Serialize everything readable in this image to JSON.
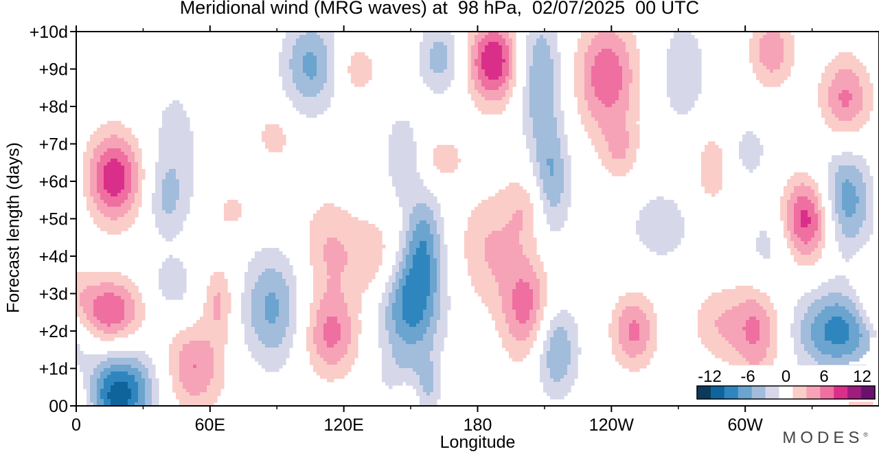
{
  "title": "Meridional wind (MRG waves) at  98 hPa,  02/07/2025  00 UTC",
  "brand": "MODES",
  "brand_mark": "®",
  "chart_data": {
    "type": "heatmap",
    "title": "Meridional wind (MRG waves) at  98 hPa,  02/07/2025  00 UTC",
    "xlabel": "Longitude",
    "ylabel": "Forecast length (days)",
    "x_ticks": [
      "0",
      "60E",
      "120E",
      "180",
      "120W",
      "60W"
    ],
    "x_tick_values": [
      0,
      60,
      120,
      180,
      240,
      300
    ],
    "x_minor_tick_values": [
      30,
      90,
      150,
      210,
      270,
      330
    ],
    "xlim": [
      0,
      360
    ],
    "y_ticks": [
      "00",
      "+1d",
      "+2d",
      "+3d",
      "+4d",
      "+5d",
      "+6d",
      "+7d",
      "+8d",
      "+9d",
      "+10d"
    ],
    "y_tick_values": [
      0,
      1,
      2,
      3,
      4,
      5,
      6,
      7,
      8,
      9,
      10
    ],
    "ylim": [
      0,
      10
    ],
    "colorbar": {
      "labels": [
        "-12",
        "-6",
        "0",
        "6",
        "12"
      ],
      "label_values": [
        -12,
        -6,
        0,
        6,
        12
      ],
      "levels": [
        -14,
        -12,
        -10,
        -8,
        -6,
        -4,
        -2,
        2,
        4,
        6,
        8,
        10,
        12,
        14
      ],
      "colors": [
        "#0b3a5c",
        "#10649c",
        "#2f86bf",
        "#6aa4cf",
        "#a2bcdc",
        "#d6d8ea",
        "#ffffff",
        "#fbcdc8",
        "#f6a3b8",
        "#ef6fa0",
        "#d92f8a",
        "#a01c7d",
        "#6a1170"
      ]
    },
    "features": [
      {
        "lon": 17,
        "day": 6.1,
        "amp": 9.5,
        "wx": 9,
        "wd": 0.85
      },
      {
        "lon": 14,
        "day": 2.5,
        "amp": 8.5,
        "wx": 11,
        "wd": 0.65
      },
      {
        "lon": 18,
        "day": 0.2,
        "amp": -9,
        "wx": 10,
        "wd": 0.7
      },
      {
        "lon": 52,
        "day": 1.0,
        "amp": 6.5,
        "wx": 10,
        "wd": 0.8
      },
      {
        "lon": 64,
        "day": 2.8,
        "amp": 4.5,
        "wx": 5,
        "wd": 0.7
      },
      {
        "lon": 44,
        "day": 6.8,
        "amp": -3,
        "wx": 9,
        "wd": 1.5
      },
      {
        "lon": 40,
        "day": 5.5,
        "amp": -3,
        "wx": 6,
        "wd": 0.7
      },
      {
        "lon": 43,
        "day": 3.2,
        "amp": -3,
        "wx": 8,
        "wd": 0.6
      },
      {
        "lon": 25,
        "day": 0.8,
        "amp": -3.5,
        "wx": 14,
        "wd": 0.8
      },
      {
        "lon": 88,
        "day": 2.6,
        "amp": -6.5,
        "wx": 10,
        "wd": 1.1
      },
      {
        "lon": 89,
        "day": 7.2,
        "amp": 3,
        "wx": 6,
        "wd": 0.5
      },
      {
        "lon": 70,
        "day": 5.2,
        "amp": 3,
        "wx": 5,
        "wd": 0.35
      },
      {
        "lon": 105,
        "day": 9.1,
        "amp": -6.5,
        "wx": 9,
        "wd": 0.9
      },
      {
        "lon": 126,
        "day": 9.0,
        "amp": 3.5,
        "wx": 7,
        "wd": 0.5
      },
      {
        "lon": 113,
        "day": 4.2,
        "amp": 4,
        "wx": 9,
        "wd": 1.0
      },
      {
        "lon": 114,
        "day": 1.9,
        "amp": 6.5,
        "wx": 9,
        "wd": 0.8
      },
      {
        "lon": 135,
        "day": 3.9,
        "amp": 4.5,
        "wx": 9,
        "wd": 0.8
      },
      {
        "lon": 150,
        "day": 2.8,
        "amp": -9.5,
        "wx": 10,
        "wd": 1.1
      },
      {
        "lon": 156,
        "day": 4.5,
        "amp": -5.5,
        "wx": 6,
        "wd": 0.9
      },
      {
        "lon": 146,
        "day": 6.7,
        "amp": -3.5,
        "wx": 6,
        "wd": 0.9
      },
      {
        "lon": 165,
        "day": 6.6,
        "amp": 3.5,
        "wx": 6,
        "wd": 0.4
      },
      {
        "lon": 163,
        "day": 9.3,
        "amp": -5,
        "wx": 7,
        "wd": 0.7
      },
      {
        "lon": 145,
        "day": 0.6,
        "amp": -3,
        "wx": 7,
        "wd": 0.6
      },
      {
        "lon": 158,
        "day": 0.5,
        "amp": -3.5,
        "wx": 4,
        "wd": 0.6
      },
      {
        "lon": 147,
        "day": 0.2,
        "amp": 3,
        "wx": 5,
        "wd": 0.5
      },
      {
        "lon": 187,
        "day": 9.2,
        "amp": 10,
        "wx": 8,
        "wd": 0.8
      },
      {
        "lon": 185,
        "day": 4.2,
        "amp": 4,
        "wx": 10,
        "wd": 1.1
      },
      {
        "lon": 202,
        "day": 2.6,
        "amp": 7,
        "wx": 8,
        "wd": 1.0
      },
      {
        "lon": 202,
        "day": 5.3,
        "amp": 3.5,
        "wx": 7,
        "wd": 0.7
      },
      {
        "lon": 208,
        "day": 8.8,
        "amp": -6,
        "wx": 7,
        "wd": 1.3
      },
      {
        "lon": 213,
        "day": 6.0,
        "amp": -6,
        "wx": 6,
        "wd": 1.1
      },
      {
        "lon": 215,
        "day": 1.5,
        "amp": -6.5,
        "wx": 7,
        "wd": 0.9
      },
      {
        "lon": 238,
        "day": 8.8,
        "amp": 7.5,
        "wx": 10,
        "wd": 1.1
      },
      {
        "lon": 244,
        "day": 6.8,
        "amp": 3.5,
        "wx": 6,
        "wd": 0.6
      },
      {
        "lon": 250,
        "day": 2.0,
        "amp": 6.5,
        "wx": 7,
        "wd": 0.7
      },
      {
        "lon": 262,
        "day": 4.8,
        "amp": -3.5,
        "wx": 10,
        "wd": 0.7
      },
      {
        "lon": 272,
        "day": 8.9,
        "amp": -3,
        "wx": 10,
        "wd": 1.3
      },
      {
        "lon": 285,
        "day": 6.4,
        "amp": 3.5,
        "wx": 6,
        "wd": 0.8
      },
      {
        "lon": 287,
        "day": 2.2,
        "amp": 3.5,
        "wx": 8,
        "wd": 0.7
      },
      {
        "lon": 305,
        "day": 2.0,
        "amp": 6.5,
        "wx": 8,
        "wd": 0.9
      },
      {
        "lon": 312,
        "day": 9.5,
        "amp": 5.5,
        "wx": 7,
        "wd": 0.7
      },
      {
        "lon": 328,
        "day": 5.0,
        "amp": 9.5,
        "wx": 8,
        "wd": 0.8
      },
      {
        "lon": 302,
        "day": 6.8,
        "amp": -3,
        "wx": 6,
        "wd": 0.6
      },
      {
        "lon": 345,
        "day": 5.5,
        "amp": -7.5,
        "wx": 9,
        "wd": 1.0
      },
      {
        "lon": 342,
        "day": 2.0,
        "amp": -9,
        "wx": 14,
        "wd": 0.8
      },
      {
        "lon": 345,
        "day": 8.2,
        "amp": 6.5,
        "wx": 8,
        "wd": 0.8
      },
      {
        "lon": 357,
        "day": 3.1,
        "amp": 3,
        "wx": 6,
        "wd": 0.6
      },
      {
        "lon": 310,
        "day": 4.2,
        "amp": -3,
        "wx": 7,
        "wd": 0.8
      },
      {
        "lon": 355,
        "day": 0.2,
        "amp": 4,
        "wx": 10,
        "wd": 0.6
      }
    ]
  }
}
